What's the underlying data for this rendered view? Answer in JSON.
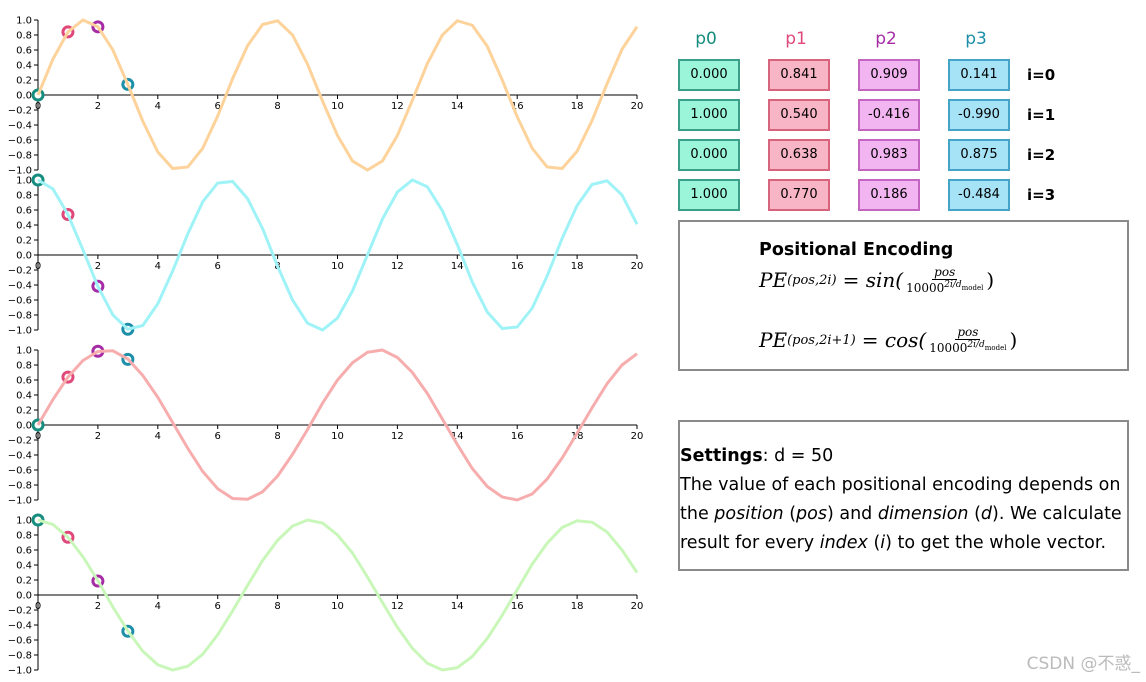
{
  "chart_data": [
    {
      "type": "line",
      "xlim": [
        0,
        20
      ],
      "ylim": [
        -1,
        1
      ],
      "xticks": [
        0,
        2,
        4,
        6,
        8,
        10,
        12,
        14,
        16,
        18,
        20
      ],
      "yticks": [
        {
          "value": 1,
          "label": "1.0"
        },
        {
          "value": 0.8,
          "label": "0.8"
        },
        {
          "value": 0.6,
          "label": "0.6"
        },
        {
          "value": 0.4,
          "label": "0.4"
        },
        {
          "value": 0.2,
          "label": "0.2"
        },
        {
          "value": 0,
          "label": "0.0"
        },
        {
          "value": -0.2,
          "label": "−0.2"
        },
        {
          "value": -0.4,
          "label": "−0.4"
        },
        {
          "value": -0.6,
          "label": "−0.6"
        },
        {
          "value": -0.8,
          "label": "−0.8"
        },
        {
          "value": -1,
          "label": "−1.0"
        }
      ],
      "x": [
        0,
        0.5,
        1,
        1.5,
        2,
        2.5,
        3,
        3.5,
        4,
        4.5,
        5,
        5.5,
        6,
        6.5,
        7,
        7.5,
        8,
        8.5,
        9,
        9.5,
        10,
        10.5,
        11,
        11.5,
        12,
        12.5,
        13,
        13.5,
        14,
        14.5,
        15,
        15.5,
        16,
        16.5,
        17,
        17.5,
        18,
        18.5,
        19,
        19.5,
        20
      ],
      "series": [
        {
          "color": "#fdd39b",
          "values": [
            0,
            0.48,
            0.84,
            1.0,
            0.91,
            0.6,
            0.14,
            -0.35,
            -0.76,
            -0.98,
            -0.96,
            -0.71,
            -0.28,
            0.22,
            0.66,
            0.94,
            0.99,
            0.8,
            0.41,
            -0.08,
            -0.54,
            -0.88,
            -1.0,
            -0.88,
            -0.54,
            -0.07,
            0.42,
            0.8,
            0.99,
            0.93,
            0.65,
            0.2,
            -0.29,
            -0.71,
            -0.96,
            -0.98,
            -0.75,
            -0.34,
            0.15,
            0.61,
            0.91
          ]
        }
      ]
    },
    {
      "type": "line",
      "xlim": [
        0,
        20
      ],
      "ylim": [
        -1,
        1
      ],
      "xticks": [
        0,
        2,
        4,
        6,
        8,
        10,
        12,
        14,
        16,
        18,
        20
      ],
      "yticks": [
        {
          "value": 1,
          "label": "1.0"
        },
        {
          "value": 0.8,
          "label": "0.8"
        },
        {
          "value": 0.6,
          "label": "0.6"
        },
        {
          "value": 0.4,
          "label": "0.4"
        },
        {
          "value": 0.2,
          "label": "0.2"
        },
        {
          "value": 0,
          "label": "0.0"
        },
        {
          "value": -0.2,
          "label": "−0.2"
        },
        {
          "value": -0.4,
          "label": "−0.4"
        },
        {
          "value": -0.6,
          "label": "−0.6"
        },
        {
          "value": -0.8,
          "label": "−0.8"
        },
        {
          "value": -1,
          "label": "−1.0"
        }
      ],
      "x": [
        0,
        0.5,
        1,
        1.5,
        2,
        2.5,
        3,
        3.5,
        4,
        4.5,
        5,
        5.5,
        6,
        6.5,
        7,
        7.5,
        8,
        8.5,
        9,
        9.5,
        10,
        10.5,
        11,
        11.5,
        12,
        12.5,
        13,
        13.5,
        14,
        14.5,
        15,
        15.5,
        16,
        16.5,
        17,
        17.5,
        18,
        18.5,
        19,
        19.5,
        20
      ],
      "series": [
        {
          "color": "#9ff3f7",
          "values": [
            1.0,
            0.88,
            0.54,
            0.07,
            -0.42,
            -0.8,
            -0.99,
            -0.94,
            -0.65,
            -0.21,
            0.28,
            0.71,
            0.96,
            0.98,
            0.75,
            0.35,
            -0.15,
            -0.6,
            -0.91,
            -1.0,
            -0.84,
            -0.48,
            0.0,
            0.48,
            0.84,
            1.0,
            0.91,
            0.59,
            0.14,
            -0.36,
            -0.76,
            -0.98,
            -0.96,
            -0.71,
            -0.28,
            0.22,
            0.66,
            0.94,
            0.99,
            0.8,
            0.41
          ]
        }
      ]
    },
    {
      "type": "line",
      "xlim": [
        0,
        20
      ],
      "ylim": [
        -1,
        1
      ],
      "xticks": [
        0,
        2,
        4,
        6,
        8,
        10,
        12,
        14,
        16,
        18,
        20
      ],
      "yticks": [
        {
          "value": 1,
          "label": "1.0"
        },
        {
          "value": 0.8,
          "label": "0.8"
        },
        {
          "value": 0.6,
          "label": "0.6"
        },
        {
          "value": 0.4,
          "label": "0.4"
        },
        {
          "value": 0.2,
          "label": "0.2"
        },
        {
          "value": 0,
          "label": "0.0"
        },
        {
          "value": -0.2,
          "label": "−0.2"
        },
        {
          "value": -0.4,
          "label": "−0.4"
        },
        {
          "value": -0.6,
          "label": "−0.6"
        },
        {
          "value": -0.8,
          "label": "−0.8"
        },
        {
          "value": -1,
          "label": "−1.0"
        }
      ],
      "x": [
        0,
        0.5,
        1,
        1.5,
        2,
        2.5,
        3,
        3.5,
        4,
        4.5,
        5,
        5.5,
        6,
        6.5,
        7,
        7.5,
        8,
        8.5,
        9,
        9.5,
        10,
        10.5,
        11,
        11.5,
        12,
        12.5,
        13,
        13.5,
        14,
        14.5,
        15,
        15.5,
        16,
        16.5,
        17,
        17.5,
        18,
        18.5,
        19,
        19.5,
        20
      ],
      "series": [
        {
          "color": "#f7adad",
          "values": [
            0,
            0.34,
            0.64,
            0.86,
            0.98,
            0.99,
            0.88,
            0.66,
            0.37,
            0.03,
            -0.31,
            -0.62,
            -0.85,
            -0.98,
            -0.99,
            -0.89,
            -0.68,
            -0.39,
            -0.06,
            0.29,
            0.6,
            0.83,
            0.97,
            1.0,
            0.9,
            0.7,
            0.42,
            0.08,
            -0.26,
            -0.58,
            -0.82,
            -0.96,
            -1.0,
            -0.92,
            -0.72,
            -0.44,
            -0.11,
            0.23,
            0.55,
            0.8,
            0.95
          ]
        }
      ]
    },
    {
      "type": "line",
      "xlim": [
        0,
        20
      ],
      "ylim": [
        -1,
        1
      ],
      "xticks": [
        0,
        2,
        4,
        6,
        8,
        10,
        12,
        14,
        16,
        18,
        20
      ],
      "yticks": [
        {
          "value": 1,
          "label": "1.0"
        },
        {
          "value": 0.8,
          "label": "0.8"
        },
        {
          "value": 0.6,
          "label": "0.6"
        },
        {
          "value": 0.4,
          "label": "0.4"
        },
        {
          "value": 0.2,
          "label": "0.2"
        },
        {
          "value": 0,
          "label": "0.0"
        },
        {
          "value": -0.2,
          "label": "−0.2"
        },
        {
          "value": -0.4,
          "label": "−0.4"
        },
        {
          "value": -0.6,
          "label": "−0.6"
        },
        {
          "value": -0.8,
          "label": "−0.8"
        },
        {
          "value": -1,
          "label": "−1.0"
        }
      ],
      "x": [
        0,
        0.5,
        1,
        1.5,
        2,
        2.5,
        3,
        3.5,
        4,
        4.5,
        5,
        5.5,
        6,
        6.5,
        7,
        7.5,
        8,
        8.5,
        9,
        9.5,
        10,
        10.5,
        11,
        11.5,
        12,
        12.5,
        13,
        13.5,
        14,
        14.5,
        15,
        15.5,
        16,
        16.5,
        17,
        17.5,
        18,
        18.5,
        19,
        19.5,
        20
      ],
      "series": [
        {
          "color": "#c9f7b9",
          "values": [
            1.0,
            0.94,
            0.77,
            0.51,
            0.19,
            -0.16,
            -0.48,
            -0.75,
            -0.93,
            -1.0,
            -0.95,
            -0.79,
            -0.53,
            -0.21,
            0.13,
            0.46,
            0.73,
            0.92,
            1.0,
            0.96,
            0.8,
            0.56,
            0.24,
            -0.1,
            -0.43,
            -0.71,
            -0.91,
            -1.0,
            -0.97,
            -0.82,
            -0.58,
            -0.27,
            0.07,
            0.41,
            0.69,
            0.9,
            0.99,
            0.97,
            0.84,
            0.6,
            0.3
          ]
        }
      ]
    }
  ],
  "table": {
    "columns": [
      {
        "label": "p0",
        "color": "#168d7e",
        "fill": "#9af5d9",
        "border": "#3a9e88"
      },
      {
        "label": "p1",
        "color": "#e0487a",
        "fill": "#f8b5c5",
        "border": "#d6647d"
      },
      {
        "label": "p2",
        "color": "#a62ca6",
        "fill": "#f2b5f1",
        "border": "#c266c2"
      },
      {
        "label": "p3",
        "color": "#1d8fa9",
        "fill": "#a6e3f6",
        "border": "#45a3c8"
      }
    ],
    "rows": [
      {
        "label": "i=0",
        "values": [
          0,
          0.841,
          0.909,
          0.141
        ],
        "value_labels": [
          "0.000",
          "0.841",
          "0.909",
          "0.141"
        ]
      },
      {
        "label": "i=1",
        "values": [
          1,
          0.54,
          -0.416,
          -0.99
        ],
        "value_labels": [
          "1.000",
          "0.540",
          "-0.416",
          "-0.990"
        ]
      },
      {
        "label": "i=2",
        "values": [
          0,
          0.638,
          0.983,
          0.875
        ],
        "value_labels": [
          "0.000",
          "0.638",
          "0.983",
          "0.875"
        ]
      },
      {
        "label": "i=3",
        "values": [
          1,
          0.77,
          0.186,
          -0.484
        ],
        "value_labels": [
          "1.000",
          "0.770",
          "0.186",
          "-0.484"
        ]
      }
    ]
  },
  "encoding": {
    "title": "Positional Encoding",
    "formulas": [
      {
        "lhs": "PE",
        "sub": "(pos,2i)",
        "fn": "= sin(",
        "num": "pos",
        "den": "10000",
        "exp": "2i/d",
        "exp_sub": "model",
        "close": ")"
      },
      {
        "lhs": "PE",
        "sub": "(pos,2i+1)",
        "fn": "= cos(",
        "num": "pos",
        "den": "10000",
        "exp": "2i/d",
        "exp_sub": "model",
        "close": ")"
      }
    ]
  },
  "settings": {
    "label": "Settings",
    "value": ": d = 50",
    "text": [
      {
        "text": "The value of each positional encoding depends on the "
      },
      {
        "text": "position",
        "italic": true
      },
      {
        "text": " ("
      },
      {
        "text": "pos",
        "italic": true
      },
      {
        "text": ") and "
      },
      {
        "text": "dimension",
        "italic": true
      },
      {
        "text": " ("
      },
      {
        "text": "d",
        "italic": true
      },
      {
        "text": "). We calculate result for every "
      },
      {
        "text": "index",
        "italic": true
      },
      {
        "text": " ("
      },
      {
        "text": "i",
        "italic": true
      },
      {
        "text": ") to get the whole vector."
      }
    ]
  },
  "watermark": "CSDN @不惑_"
}
